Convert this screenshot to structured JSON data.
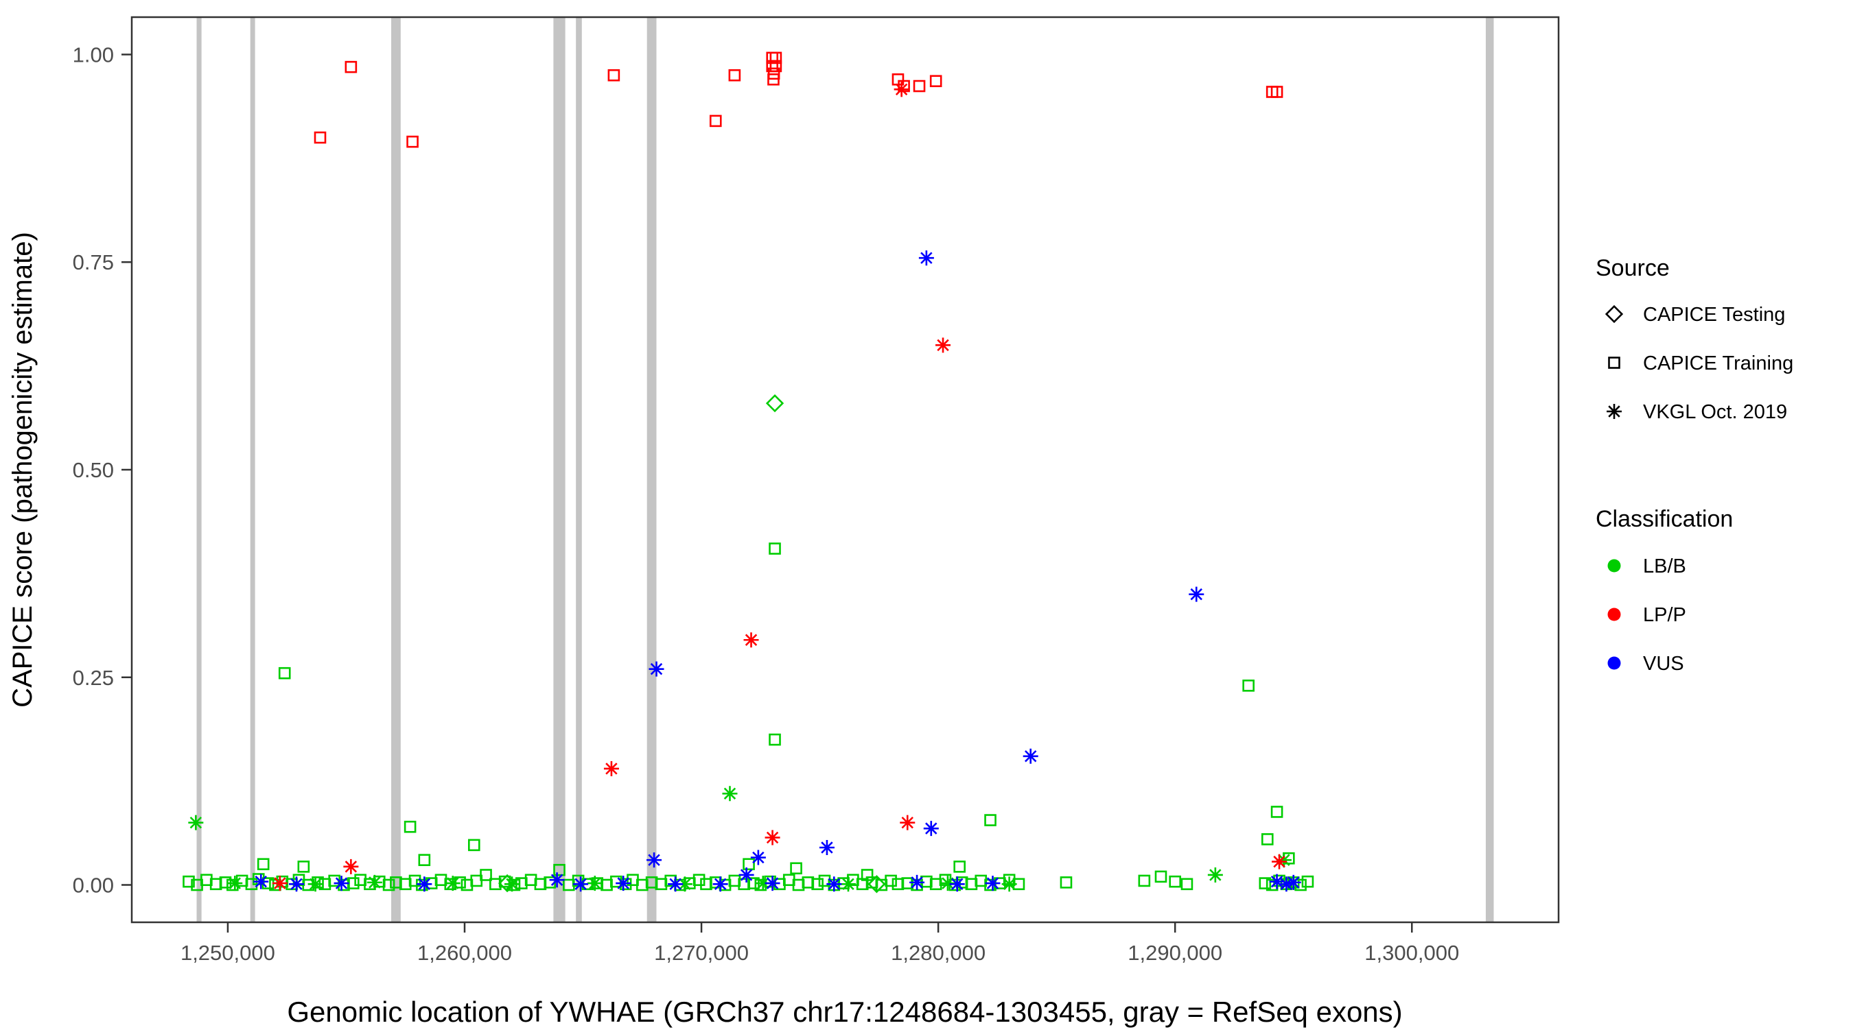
{
  "chart_data": {
    "type": "scatter",
    "title": "",
    "xlabel": "Genomic location of YWHAE (GRCh37 chr17:1248684-1303455, gray = RefSeq exons)",
    "ylabel": "CAPICE score (pathogenicity estimate)",
    "x_domain": [
      1245945,
      1306194
    ],
    "y_domain": [
      -0.045,
      1.045
    ],
    "x_ticks": {
      "values": [
        1250000,
        1260000,
        1270000,
        1280000,
        1290000,
        1300000
      ],
      "labels": [
        "1,250,000",
        "1,260,000",
        "1,270,000",
        "1,280,000",
        "1,290,000",
        "1,300,000"
      ]
    },
    "y_ticks": {
      "values": [
        0,
        0.25,
        0.5,
        0.75,
        1.0
      ],
      "labels": [
        "0.00",
        "0.25",
        "0.50",
        "0.75",
        "1.00"
      ]
    },
    "panel": {
      "background": "#ffffff",
      "border_color": "#333333",
      "tick_label_color": "#4d4d4d"
    },
    "exon_color": "#c4c4c4",
    "exons": [
      [
        1248684,
        1248890
      ],
      [
        1250950,
        1251150
      ],
      [
        1256900,
        1257300
      ],
      [
        1263750,
        1264250
      ],
      [
        1264700,
        1264950
      ],
      [
        1267700,
        1268100
      ],
      [
        1303120,
        1303455
      ]
    ],
    "colors": {
      "g": "#00cd00",
      "r": "#ff0000",
      "b": "#0000ff"
    },
    "marker_shapes": {
      "sq": "square",
      "di": "diamond",
      "as": "asterisk"
    },
    "legend": {
      "source": {
        "title": "Source",
        "items": [
          {
            "label": "CAPICE Testing",
            "shape": "di"
          },
          {
            "label": "CAPICE Training",
            "shape": "sq"
          },
          {
            "label": "VKGL Oct. 2019",
            "shape": "as"
          }
        ]
      },
      "classification": {
        "title": "Classification",
        "items": [
          {
            "label": "LB/B",
            "color": "#00cd00"
          },
          {
            "label": "LP/P",
            "color": "#ff0000"
          },
          {
            "label": "VUS",
            "color": "#0000ff"
          }
        ]
      }
    },
    "points": [
      [
        1248350,
        0.004,
        "sq",
        "g"
      ],
      [
        1248700,
        0.0,
        "sq",
        "g"
      ],
      [
        1249100,
        0.006,
        "sq",
        "g"
      ],
      [
        1249500,
        0.001,
        "sq",
        "g"
      ],
      [
        1249900,
        0.003,
        "sq",
        "g"
      ],
      [
        1250200,
        0.0,
        "sq",
        "g"
      ],
      [
        1250600,
        0.005,
        "sq",
        "g"
      ],
      [
        1251000,
        0.001,
        "sq",
        "g"
      ],
      [
        1251300,
        0.007,
        "sq",
        "g"
      ],
      [
        1251500,
        0.025,
        "sq",
        "g"
      ],
      [
        1251700,
        0.002,
        "sq",
        "g"
      ],
      [
        1252000,
        0.0,
        "sq",
        "g"
      ],
      [
        1252300,
        0.004,
        "sq",
        "g"
      ],
      [
        1252700,
        0.001,
        "sq",
        "g"
      ],
      [
        1253000,
        0.006,
        "sq",
        "g"
      ],
      [
        1253200,
        0.022,
        "sq",
        "g"
      ],
      [
        1253400,
        0.0,
        "sq",
        "g"
      ],
      [
        1253800,
        0.003,
        "sq",
        "g"
      ],
      [
        1254100,
        0.001,
        "sq",
        "g"
      ],
      [
        1254500,
        0.005,
        "sq",
        "g"
      ],
      [
        1254900,
        0.0,
        "sq",
        "g"
      ],
      [
        1255300,
        0.002,
        "sq",
        "g"
      ],
      [
        1255600,
        0.006,
        "sq",
        "g"
      ],
      [
        1256000,
        0.001,
        "sq",
        "g"
      ],
      [
        1256400,
        0.004,
        "sq",
        "g"
      ],
      [
        1256800,
        0.0,
        "sq",
        "g"
      ],
      [
        1257100,
        0.003,
        "sq",
        "g"
      ],
      [
        1257500,
        0.001,
        "sq",
        "g"
      ],
      [
        1257900,
        0.005,
        "sq",
        "g"
      ],
      [
        1258200,
        0.0,
        "sq",
        "g"
      ],
      [
        1258300,
        0.03,
        "sq",
        "g"
      ],
      [
        1258600,
        0.002,
        "sq",
        "g"
      ],
      [
        1259000,
        0.006,
        "sq",
        "g"
      ],
      [
        1259400,
        0.001,
        "sq",
        "g"
      ],
      [
        1259800,
        0.003,
        "sq",
        "g"
      ],
      [
        1260100,
        0.0,
        "sq",
        "g"
      ],
      [
        1260500,
        0.005,
        "sq",
        "g"
      ],
      [
        1260900,
        0.012,
        "sq",
        "g"
      ],
      [
        1261300,
        0.001,
        "sq",
        "g"
      ],
      [
        1261700,
        0.004,
        "sq",
        "g"
      ],
      [
        1262100,
        0.0,
        "sq",
        "g"
      ],
      [
        1262400,
        0.002,
        "sq",
        "g"
      ],
      [
        1262800,
        0.006,
        "sq",
        "g"
      ],
      [
        1263200,
        0.001,
        "sq",
        "g"
      ],
      [
        1263600,
        0.003,
        "sq",
        "g"
      ],
      [
        1264000,
        0.018,
        "sq",
        "g"
      ],
      [
        1264400,
        0.0,
        "sq",
        "g"
      ],
      [
        1264800,
        0.005,
        "sq",
        "g"
      ],
      [
        1265200,
        0.001,
        "sq",
        "g"
      ],
      [
        1265600,
        0.002,
        "sq",
        "g"
      ],
      [
        1266000,
        0.0,
        "sq",
        "g"
      ],
      [
        1266400,
        0.004,
        "sq",
        "g"
      ],
      [
        1266800,
        0.001,
        "sq",
        "g"
      ],
      [
        1267100,
        0.006,
        "sq",
        "g"
      ],
      [
        1267500,
        0.0,
        "sq",
        "g"
      ],
      [
        1267900,
        0.003,
        "sq",
        "g"
      ],
      [
        1268300,
        0.001,
        "sq",
        "g"
      ],
      [
        1268700,
        0.005,
        "sq",
        "g"
      ],
      [
        1269100,
        0.0,
        "sq",
        "g"
      ],
      [
        1269500,
        0.002,
        "sq",
        "g"
      ],
      [
        1269900,
        0.006,
        "sq",
        "g"
      ],
      [
        1270200,
        0.001,
        "sq",
        "g"
      ],
      [
        1270600,
        0.003,
        "sq",
        "g"
      ],
      [
        1271000,
        0.0,
        "sq",
        "g"
      ],
      [
        1271400,
        0.005,
        "sq",
        "g"
      ],
      [
        1271800,
        0.001,
        "sq",
        "g"
      ],
      [
        1272000,
        0.025,
        "sq",
        "g"
      ],
      [
        1272200,
        0.002,
        "sq",
        "g"
      ],
      [
        1272500,
        0.0,
        "sq",
        "g"
      ],
      [
        1272900,
        0.004,
        "sq",
        "g"
      ],
      [
        1273300,
        0.001,
        "sq",
        "g"
      ],
      [
        1273700,
        0.006,
        "sq",
        "g"
      ],
      [
        1274000,
        0.02,
        "sq",
        "g"
      ],
      [
        1274100,
        0.0,
        "sq",
        "g"
      ],
      [
        1274500,
        0.003,
        "sq",
        "g"
      ],
      [
        1274900,
        0.001,
        "sq",
        "g"
      ],
      [
        1275200,
        0.005,
        "sq",
        "g"
      ],
      [
        1275600,
        0.0,
        "sq",
        "g"
      ],
      [
        1276000,
        0.002,
        "sq",
        "g"
      ],
      [
        1276400,
        0.006,
        "sq",
        "g"
      ],
      [
        1276800,
        0.001,
        "sq",
        "g"
      ],
      [
        1277000,
        0.012,
        "sq",
        "g"
      ],
      [
        1277200,
        0.003,
        "sq",
        "g"
      ],
      [
        1277600,
        0.0,
        "sq",
        "g"
      ],
      [
        1278000,
        0.005,
        "sq",
        "g"
      ],
      [
        1278300,
        0.001,
        "sq",
        "g"
      ],
      [
        1278700,
        0.002,
        "sq",
        "g"
      ],
      [
        1279100,
        0.0,
        "sq",
        "g"
      ],
      [
        1279500,
        0.004,
        "sq",
        "g"
      ],
      [
        1279900,
        0.001,
        "sq",
        "g"
      ],
      [
        1280300,
        0.006,
        "sq",
        "g"
      ],
      [
        1280700,
        0.0,
        "sq",
        "g"
      ],
      [
        1280900,
        0.022,
        "sq",
        "g"
      ],
      [
        1281000,
        0.003,
        "sq",
        "g"
      ],
      [
        1281400,
        0.001,
        "sq",
        "g"
      ],
      [
        1281800,
        0.005,
        "sq",
        "g"
      ],
      [
        1282200,
        0.0,
        "sq",
        "g"
      ],
      [
        1282600,
        0.002,
        "sq",
        "g"
      ],
      [
        1283000,
        0.006,
        "sq",
        "g"
      ],
      [
        1283400,
        0.001,
        "sq",
        "g"
      ],
      [
        1285400,
        0.003,
        "sq",
        "g"
      ],
      [
        1288700,
        0.005,
        "sq",
        "g"
      ],
      [
        1289400,
        0.01,
        "sq",
        "g"
      ],
      [
        1290000,
        0.004,
        "sq",
        "g"
      ],
      [
        1290500,
        0.001,
        "sq",
        "g"
      ],
      [
        1293800,
        0.002,
        "sq",
        "g"
      ],
      [
        1294100,
        0.0,
        "sq",
        "g"
      ],
      [
        1294400,
        0.005,
        "sq",
        "g"
      ],
      [
        1294700,
        0.001,
        "sq",
        "g"
      ],
      [
        1295000,
        0.003,
        "sq",
        "g"
      ],
      [
        1295300,
        0.0,
        "sq",
        "g"
      ],
      [
        1295600,
        0.004,
        "sq",
        "g"
      ],
      [
        1252400,
        0.255,
        "sq",
        "g"
      ],
      [
        1257700,
        0.07,
        "sq",
        "g"
      ],
      [
        1260400,
        0.048,
        "sq",
        "g"
      ],
      [
        1273100,
        0.405,
        "sq",
        "g"
      ],
      [
        1273100,
        0.175,
        "sq",
        "g"
      ],
      [
        1282200,
        0.078,
        "sq",
        "g"
      ],
      [
        1293100,
        0.24,
        "sq",
        "g"
      ],
      [
        1294300,
        0.088,
        "sq",
        "g"
      ],
      [
        1293900,
        0.055,
        "sq",
        "g"
      ],
      [
        1294800,
        0.032,
        "sq",
        "g"
      ],
      [
        1248650,
        0.075,
        "as",
        "g"
      ],
      [
        1271200,
        0.11,
        "as",
        "g"
      ],
      [
        1291700,
        0.012,
        "as",
        "g"
      ],
      [
        1294600,
        0.03,
        "as",
        "g"
      ],
      [
        1250300,
        0.002,
        "as",
        "g"
      ],
      [
        1253700,
        0.001,
        "as",
        "g"
      ],
      [
        1256200,
        0.003,
        "as",
        "g"
      ],
      [
        1259500,
        0.002,
        "as",
        "g"
      ],
      [
        1262000,
        0.001,
        "as",
        "g"
      ],
      [
        1265500,
        0.002,
        "as",
        "g"
      ],
      [
        1269300,
        0.001,
        "as",
        "g"
      ],
      [
        1272600,
        0.002,
        "as",
        "g"
      ],
      [
        1276200,
        0.001,
        "as",
        "g"
      ],
      [
        1280400,
        0.002,
        "as",
        "g"
      ],
      [
        1283000,
        0.001,
        "as",
        "g"
      ],
      [
        1273100,
        0.58,
        "di",
        "g"
      ],
      [
        1261800,
        0.002,
        "di",
        "g"
      ],
      [
        1277400,
        0.001,
        "di",
        "g"
      ],
      [
        1279500,
        0.755,
        "as",
        "b"
      ],
      [
        1290900,
        0.35,
        "as",
        "b"
      ],
      [
        1268100,
        0.26,
        "as",
        "b"
      ],
      [
        1283900,
        0.155,
        "as",
        "b"
      ],
      [
        1279700,
        0.068,
        "as",
        "b"
      ],
      [
        1272400,
        0.033,
        "as",
        "b"
      ],
      [
        1275300,
        0.045,
        "as",
        "b"
      ],
      [
        1268000,
        0.03,
        "as",
        "b"
      ],
      [
        1271900,
        0.012,
        "as",
        "b"
      ],
      [
        1251400,
        0.004,
        "as",
        "b"
      ],
      [
        1252900,
        0.001,
        "as",
        "b"
      ],
      [
        1254800,
        0.002,
        "as",
        "b"
      ],
      [
        1258300,
        0.001,
        "as",
        "b"
      ],
      [
        1263900,
        0.006,
        "as",
        "b"
      ],
      [
        1264900,
        0.001,
        "as",
        "b"
      ],
      [
        1266700,
        0.002,
        "as",
        "b"
      ],
      [
        1268900,
        0.001,
        "as",
        "b"
      ],
      [
        1270800,
        0.001,
        "as",
        "b"
      ],
      [
        1273000,
        0.002,
        "as",
        "b"
      ],
      [
        1275600,
        0.001,
        "as",
        "b"
      ],
      [
        1279100,
        0.003,
        "as",
        "b"
      ],
      [
        1280800,
        0.001,
        "as",
        "b"
      ],
      [
        1282300,
        0.002,
        "as",
        "b"
      ],
      [
        1294300,
        0.004,
        "as",
        "b"
      ],
      [
        1294700,
        0.001,
        "as",
        "b"
      ],
      [
        1295000,
        0.003,
        "as",
        "b"
      ],
      [
        1253900,
        0.9,
        "sq",
        "r"
      ],
      [
        1255200,
        0.985,
        "sq",
        "r"
      ],
      [
        1257800,
        0.895,
        "sq",
        "r"
      ],
      [
        1266300,
        0.975,
        "sq",
        "r"
      ],
      [
        1270600,
        0.92,
        "sq",
        "r"
      ],
      [
        1271400,
        0.975,
        "sq",
        "r"
      ],
      [
        1272990,
        0.996,
        "sq",
        "r"
      ],
      [
        1273140,
        0.996,
        "sq",
        "r"
      ],
      [
        1272990,
        0.986,
        "sq",
        "r"
      ],
      [
        1273140,
        0.986,
        "sq",
        "r"
      ],
      [
        1273060,
        0.977,
        "sq",
        "r"
      ],
      [
        1273040,
        0.97,
        "sq",
        "r"
      ],
      [
        1278300,
        0.97,
        "sq",
        "r"
      ],
      [
        1278550,
        0.962,
        "sq",
        "r"
      ],
      [
        1279200,
        0.962,
        "sq",
        "r"
      ],
      [
        1279900,
        0.968,
        "sq",
        "r"
      ],
      [
        1294100,
        0.955,
        "sq",
        "r"
      ],
      [
        1294300,
        0.955,
        "sq",
        "r"
      ],
      [
        1278450,
        0.958,
        "as",
        "r"
      ],
      [
        1280200,
        0.65,
        "as",
        "r"
      ],
      [
        1272100,
        0.295,
        "as",
        "r"
      ],
      [
        1266200,
        0.14,
        "as",
        "r"
      ],
      [
        1273000,
        0.057,
        "as",
        "r"
      ],
      [
        1278700,
        0.075,
        "as",
        "r"
      ],
      [
        1255200,
        0.022,
        "as",
        "r"
      ],
      [
        1252200,
        0.002,
        "as",
        "r"
      ],
      [
        1294400,
        0.028,
        "as",
        "r"
      ]
    ]
  }
}
